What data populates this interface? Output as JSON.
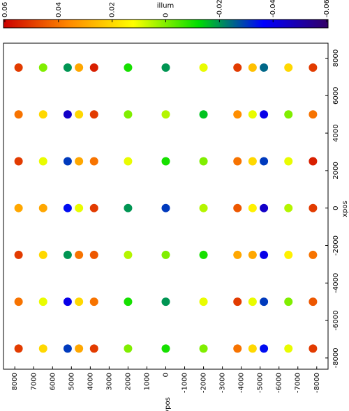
{
  "chart_data": {
    "type": "scatter",
    "colorbar_label": "illum",
    "xlabel": "xpos",
    "ylabel": "ypos",
    "xlim": [
      -8600,
      8800
    ],
    "xticks": [
      -8000,
      -6000,
      -4000,
      -2000,
      0,
      2000,
      4000,
      6000,
      8000
    ],
    "ylim": [
      8600,
      -8600
    ],
    "yticks": [
      8000,
      7000,
      6000,
      5000,
      4000,
      3000,
      2000,
      1000,
      0,
      -1000,
      -2000,
      -3000,
      -4000,
      -5000,
      -6000,
      -7000,
      -8000
    ],
    "clim": [
      0.0605,
      -0.0605
    ],
    "cticks": [
      0.06,
      0.04,
      0.02,
      0,
      -0.02,
      -0.04,
      -0.06
    ],
    "cmap_colors": [
      "#cc0000",
      "#ff8800",
      "#ffff00",
      "#00dd00",
      "#0000ff",
      "#330066"
    ],
    "x": [
      -7500,
      -5000,
      -2500,
      0,
      2500,
      5000,
      7500,
      -7500,
      -5000,
      -2500,
      0,
      2500,
      5000,
      7500,
      -7500,
      -5000,
      -2500,
      0,
      2500,
      5000,
      7500,
      -7500,
      -5000,
      -2500,
      0,
      2500,
      5000,
      7500,
      -7500,
      -5000,
      -2500,
      0,
      2500,
      5000,
      7500,
      -7500,
      -5000,
      -2500,
      0,
      2500,
      5000,
      7500,
      -7500,
      -5000,
      -2500,
      0,
      2500,
      5000,
      7500,
      -7500,
      -5000,
      -2500,
      0,
      2500,
      5000,
      7500,
      -7500,
      -5000,
      -2500,
      0,
      2500,
      5000,
      7500,
      -7500,
      -5000,
      -2500,
      0,
      2500,
      5000,
      7500,
      -7500,
      -5000,
      -2500,
      0,
      2500,
      5000,
      7500,
      -7500,
      -5000,
      -2500,
      0,
      2500,
      5000,
      7500,
      -7500,
      -5000,
      -2500,
      0,
      2500,
      5000,
      7500
    ],
    "y": [
      7800,
      7800,
      7800,
      7800,
      7800,
      7800,
      7800,
      6500,
      6500,
      6500,
      6500,
      6500,
      6500,
      6500,
      5200,
      5200,
      5200,
      5200,
      5200,
      5200,
      5200,
      4600,
      4600,
      4600,
      4600,
      4600,
      4600,
      4600,
      3800,
      3800,
      3800,
      3800,
      3800,
      3800,
      3800,
      2000,
      2000,
      2000,
      2000,
      2000,
      2000,
      2000,
      0,
      0,
      0,
      0,
      0,
      0,
      0,
      -2000,
      -2000,
      -2000,
      -2000,
      -2000,
      -2000,
      -2000,
      -3800,
      -3800,
      -3800,
      -3800,
      -3800,
      -3800,
      -3800,
      -4600,
      -4600,
      -4600,
      -4600,
      -4600,
      -4600,
      -4600,
      -5200,
      -5200,
      -5200,
      -5200,
      -5200,
      -5200,
      -5200,
      -6500,
      -6500,
      -6500,
      -6500,
      -6500,
      -6500,
      -6500,
      -7800,
      -7800,
      -7800,
      -7800,
      -7800,
      -7800,
      -7800
    ],
    "c": [
      0.05,
      0.04,
      0.05,
      0.03,
      0.05,
      0.04,
      0.05,
      0.02,
      0.01,
      0.02,
      0.03,
      0.01,
      0.02,
      0.0,
      -0.03,
      -0.04,
      -0.02,
      -0.035,
      -0.03,
      -0.045,
      -0.02,
      0.03,
      0.02,
      0.04,
      0.01,
      0.03,
      0.02,
      0.03,
      0.05,
      0.04,
      0.045,
      0.05,
      0.04,
      0.05,
      0.055,
      0.0,
      -0.01,
      0.005,
      -0.02,
      0.01,
      0.0,
      -0.01,
      -0.01,
      -0.02,
      0.0,
      -0.03,
      -0.01,
      0.005,
      -0.02,
      0.0,
      0.01,
      -0.01,
      0.005,
      0.0,
      -0.015,
      0.01,
      0.04,
      0.05,
      0.03,
      0.045,
      0.04,
      0.035,
      0.05,
      0.02,
      0.01,
      0.03,
      0.015,
      0.02,
      0.01,
      0.025,
      -0.035,
      -0.03,
      -0.04,
      -0.045,
      -0.03,
      -0.04,
      -0.025,
      0.01,
      0.0,
      0.015,
      0.005,
      0.01,
      0.0,
      0.02,
      0.05,
      0.045,
      0.04,
      0.05,
      0.055,
      0.04,
      0.05
    ]
  }
}
